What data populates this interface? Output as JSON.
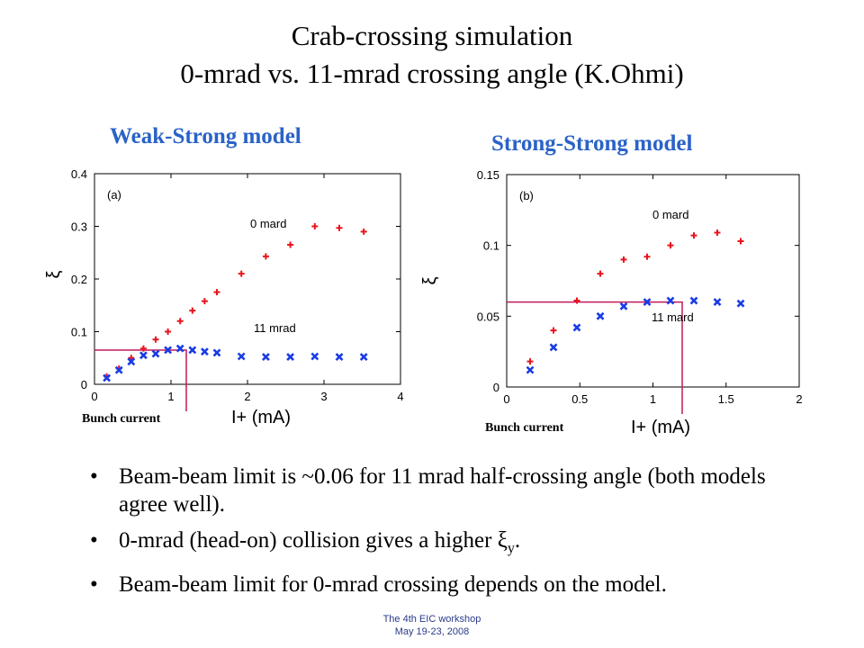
{
  "slide": {
    "title_line1": "Crab-crossing simulation",
    "title_line2": "0-mrad vs. 11-mrad crossing angle (K.Ohmi)",
    "footer_line1": "The 4th EIC workshop",
    "footer_line2": "May 19-23, 2008",
    "bullets": [
      "Beam-beam limit is ~0.06 for 11 mrad half-crossing angle (both models agree well).",
      "0-mrad (head-on) collision gives a higher ξy.",
      "Beam-beam limit for 0-mrad crossing depends on the model."
    ],
    "bullet_char": "•"
  },
  "colors": {
    "model_title": "#2a62c7",
    "series_0mrad": "#e8141c",
    "series_11mrad": "#1a3ce6",
    "guide_line": "#c2185b"
  },
  "chart_data": [
    {
      "type": "scatter",
      "model_title": "Weak-Strong model",
      "panel_label": "(a)",
      "xlabel": "I+ (mA)",
      "ylabel": "ξ",
      "bunch_current_label": "Bunch current",
      "xlim": [
        0,
        4
      ],
      "ylim": [
        0,
        0.4
      ],
      "xticks": [
        "0",
        "1",
        "2",
        "3",
        "4"
      ],
      "yticks": [
        "0",
        "0.1",
        "0.2",
        "0.3",
        "0.4"
      ],
      "xtick_values": [
        0,
        1,
        2,
        3,
        4
      ],
      "ytick_values": [
        0,
        0.1,
        0.2,
        0.3,
        0.4
      ],
      "series": [
        {
          "name": "0 mard",
          "marker": "plus",
          "x": [
            0.16,
            0.32,
            0.48,
            0.64,
            0.8,
            0.96,
            1.12,
            1.28,
            1.44,
            1.6,
            1.92,
            2.24,
            2.56,
            2.88,
            3.2,
            3.52
          ],
          "y": [
            0.015,
            0.03,
            0.05,
            0.068,
            0.085,
            0.1,
            0.12,
            0.14,
            0.158,
            0.175,
            0.21,
            0.243,
            0.265,
            0.3,
            0.297,
            0.29
          ]
        },
        {
          "name": "11 mrad",
          "marker": "x",
          "x": [
            0.16,
            0.32,
            0.48,
            0.64,
            0.8,
            0.96,
            1.12,
            1.28,
            1.44,
            1.6,
            1.92,
            2.24,
            2.56,
            2.88,
            3.2,
            3.52
          ],
          "y": [
            0.012,
            0.027,
            0.043,
            0.055,
            0.058,
            0.065,
            0.068,
            0.065,
            0.062,
            0.06,
            0.053,
            0.052,
            0.052,
            0.053,
            0.052,
            0.052
          ]
        }
      ],
      "guide": {
        "x": 1.2,
        "y": 0.065
      }
    },
    {
      "type": "scatter",
      "model_title": "Strong-Strong  model",
      "panel_label": "(b)",
      "xlabel": "I+ (mA)",
      "ylabel": "ξ",
      "bunch_current_label": "Bunch current",
      "xlim": [
        0,
        2
      ],
      "ylim": [
        0,
        0.15
      ],
      "xticks": [
        "0",
        "0.5",
        "1",
        "1.5",
        "2"
      ],
      "yticks": [
        "0",
        "0.05",
        "0.1",
        "0.15"
      ],
      "xtick_values": [
        0,
        0.5,
        1,
        1.5,
        2
      ],
      "ytick_values": [
        0,
        0.05,
        0.1,
        0.15
      ],
      "series": [
        {
          "name": "0 mard",
          "marker": "plus",
          "x": [
            0.16,
            0.32,
            0.48,
            0.64,
            0.8,
            0.96,
            1.12,
            1.28,
            1.44,
            1.6
          ],
          "y": [
            0.018,
            0.04,
            0.061,
            0.08,
            0.09,
            0.092,
            0.1,
            0.107,
            0.109,
            0.103
          ]
        },
        {
          "name": "11 mard",
          "marker": "x",
          "x": [
            0.16,
            0.32,
            0.48,
            0.64,
            0.8,
            0.96,
            1.12,
            1.28,
            1.44,
            1.6
          ],
          "y": [
            0.012,
            0.028,
            0.042,
            0.05,
            0.057,
            0.06,
            0.061,
            0.061,
            0.06,
            0.059
          ]
        }
      ],
      "guide": {
        "x": 1.2,
        "y": 0.06
      }
    }
  ]
}
